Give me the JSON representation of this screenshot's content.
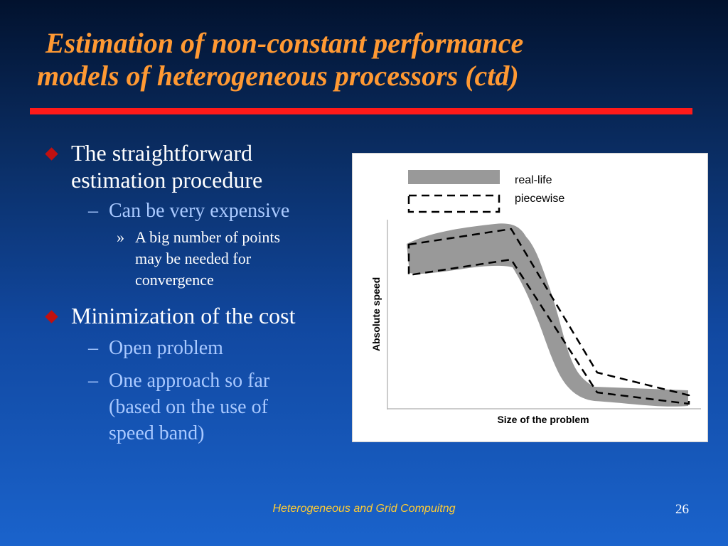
{
  "slide": {
    "title_line1": "Estimation of non-constant performance",
    "title_line2": "models of heterogeneous processors (ctd)",
    "bullets": [
      {
        "text_line1": "The straightforward",
        "text_line2": "estimation procedure",
        "sub": [
          {
            "text": "Can be very expensive",
            "sub": [
              {
                "line1": "A big number of points",
                "line2": "may be needed for",
                "line3": "convergence"
              }
            ]
          }
        ]
      },
      {
        "text": "Minimization of the cost",
        "sub": [
          {
            "text": "Open problem"
          },
          {
            "line1": "One approach so far",
            "line2": "(based on the use of",
            "line3": "speed band)"
          }
        ]
      }
    ],
    "dash": "–",
    "raquo": "»",
    "footer": "Heterogeneous and Grid Compuitng",
    "page_number": "26"
  },
  "figure": {
    "legend_real": "real-life",
    "legend_piecewise": "piecewise",
    "xlabel": "Size of the problem",
    "ylabel": "Absolute speed"
  },
  "colors": {
    "title": "#ff9933",
    "rule": "#ff1a1a",
    "bullet_diamond": "#c01010",
    "level2_text": "#a9c9ff",
    "footer": "#ffcc33",
    "band": "#999999"
  }
}
